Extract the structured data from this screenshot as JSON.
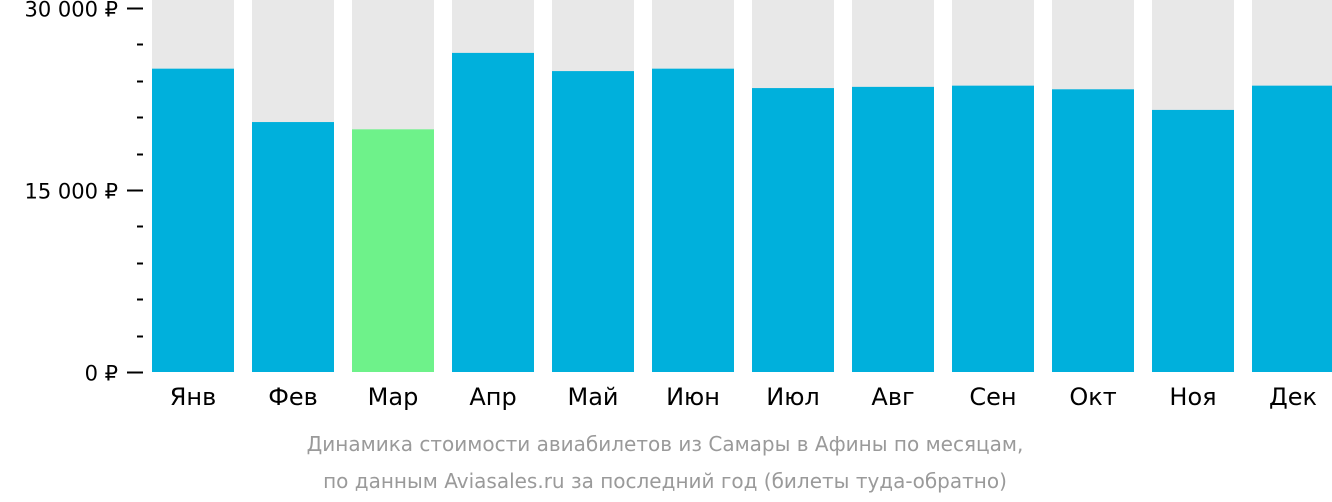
{
  "chart_data": {
    "type": "bar",
    "categories": [
      "Янв",
      "Фев",
      "Мар",
      "Апр",
      "Май",
      "Июн",
      "Июл",
      "Авг",
      "Сен",
      "Окт",
      "Ноя",
      "Дек"
    ],
    "values": [
      25000,
      20600,
      20000,
      26300,
      24800,
      25000,
      23400,
      23500,
      23600,
      23300,
      21600,
      23600
    ],
    "highlight_index": 2,
    "ylim": [
      0,
      30000
    ],
    "yticks": [
      {
        "value": 0,
        "label": "0 ₽"
      },
      {
        "value": 15000,
        "label": "15 000 ₽"
      },
      {
        "value": 30000,
        "label": "30 000 ₽"
      }
    ],
    "minor_tick_step": 3000,
    "grid": false,
    "colors": {
      "bar": "#00b0dc",
      "highlight": "#6ef28a",
      "background_bar": "#e8e8e8",
      "axis": "#000000",
      "caption": "#9a9a9a"
    }
  },
  "caption": {
    "line1": "Динамика стоимости авиабилетов из Самары в Афины по месяцам,",
    "line2": "по данным Aviasales.ru за последний год (билеты туда-обратно)"
  }
}
